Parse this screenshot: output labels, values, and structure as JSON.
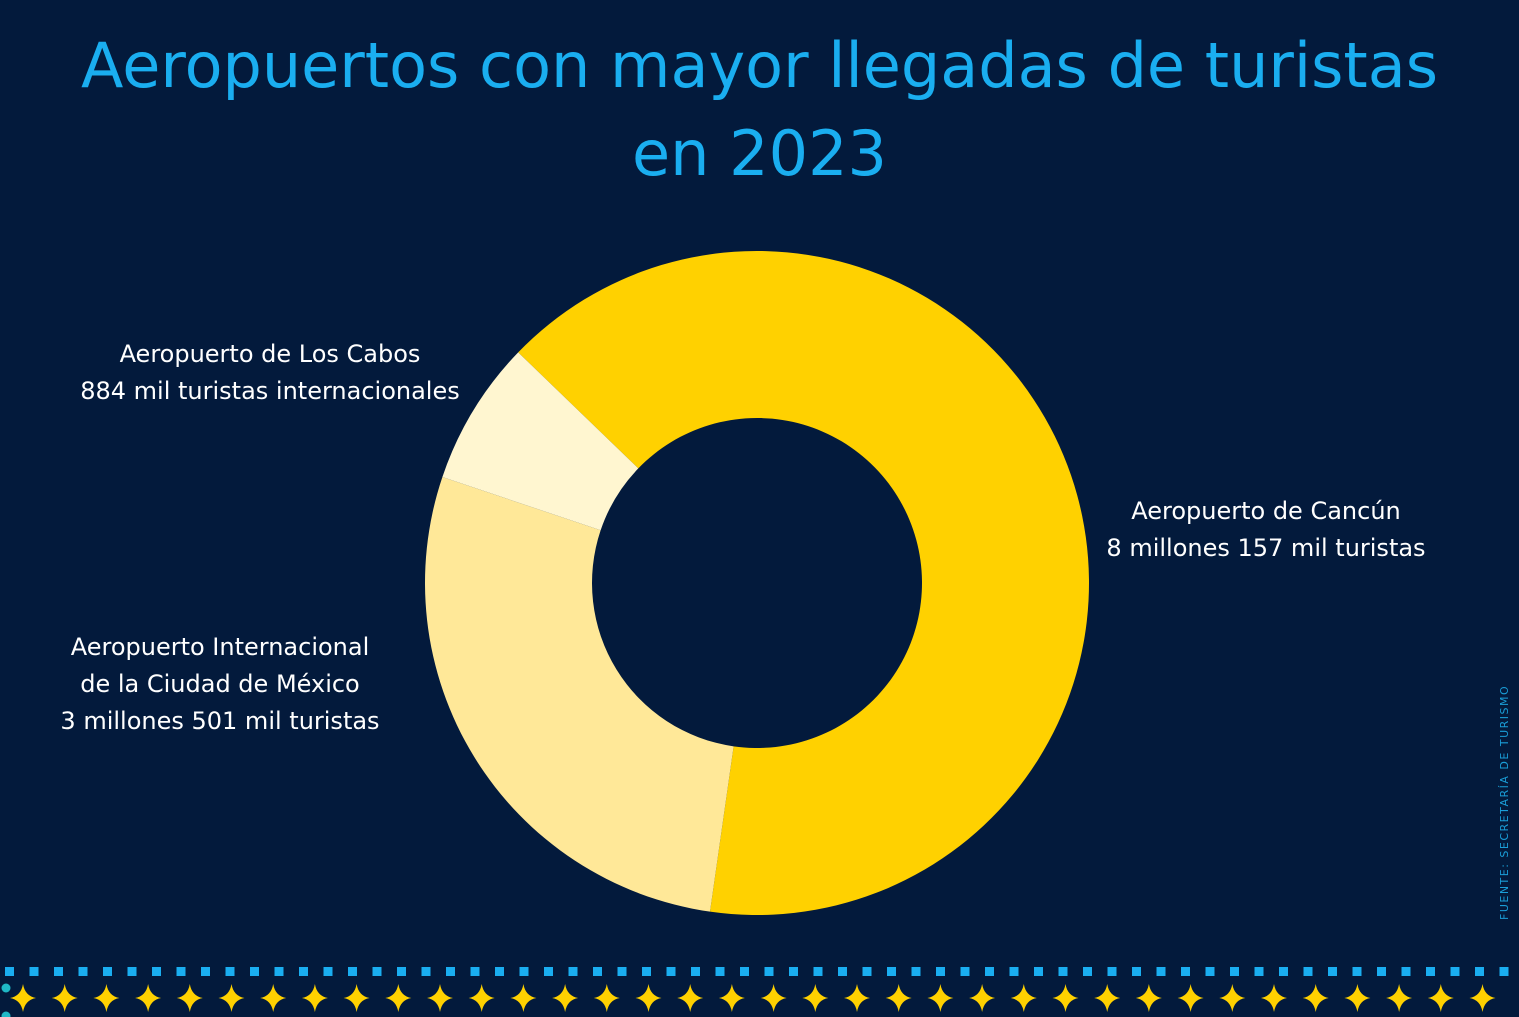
{
  "chart_data": {
    "type": "pie",
    "variant": "donut",
    "title": "Aeropuertos con mayor llegadas de turistas en 2023",
    "title_lines": [
      "Aeropuertos con mayor llegadas de turistas",
      "en 2023"
    ],
    "unit": "turistas internacionales (miles)",
    "start_angle_deg": -46,
    "slices": [
      {
        "name": "Aeropuerto de Cancún",
        "value": 8157,
        "label_lines": [
          "Aeropuerto de Cancún",
          "8 millones 157 mil turistas"
        ],
        "color": "#ffd100"
      },
      {
        "name": "Aeropuerto Internacional de la Ciudad de México",
        "value": 3501,
        "label_lines": [
          "Aeropuerto Internacional",
          "de la Ciudad de México",
          "3 millones 501 mil turistas"
        ],
        "color": "#ffe898"
      },
      {
        "name": "Aeropuerto de Los Cabos",
        "value": 884,
        "label_lines": [
          "Aeropuerto de Los Cabos",
          "884 mil turistas internacionales"
        ],
        "color": "#fff6d0"
      }
    ],
    "legend": "none"
  },
  "source": "FUENTE: SECRETARÍA DE TURISMO",
  "colors": {
    "background": "#031a3c",
    "title": "#1aaef0",
    "squares": "#1aaef0",
    "stars": "#ffd100",
    "dots": "#1fb8c6"
  }
}
